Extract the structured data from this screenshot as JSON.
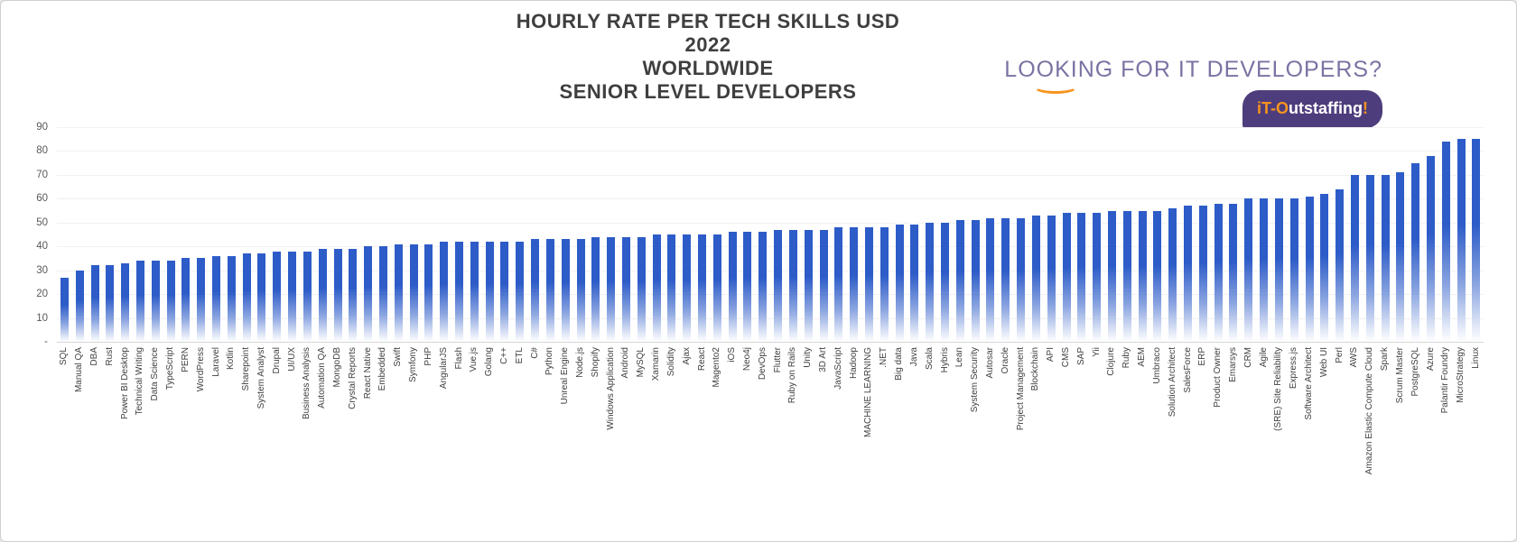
{
  "title": {
    "line1": "HOURLY RATE PER TECH SKILLS USD",
    "line2": "2022",
    "line3": "WORLDWIDE",
    "line4": "SENIOR LEVEL DEVELOPERS"
  },
  "branding": {
    "tagline": "LOOKING FOR IT DEVELOPERS?",
    "logo_prefix": "iT-O",
    "logo_suffix": "utstaffing",
    "logo_exclaim": "!"
  },
  "colors": {
    "bar": "#2d5cc8",
    "tagline": "#7b72a3",
    "badge": "#4e3d7c",
    "accent": "#f7941d",
    "title_text": "#3f3f3f",
    "axis_text": "#595959"
  },
  "chart_data": {
    "type": "bar",
    "title": "HOURLY RATE PER TECH SKILLS USD 2022 WORLDWIDE SENIOR LEVEL DEVELOPERS",
    "xlabel": "",
    "ylabel": "",
    "ylim": [
      0,
      90
    ],
    "ytick_interval": 10,
    "ytick_labels": [
      "-",
      "10",
      "20",
      "30",
      "40",
      "50",
      "60",
      "70",
      "80",
      "90"
    ],
    "grid": true,
    "legend": "none",
    "categories": [
      "SQL",
      "Manual QA",
      "DBA",
      "Rust",
      "Power BI Desktop",
      "Technical Writing",
      "Data Science",
      "TypeScript",
      "PERN",
      "WordPress",
      "Laravel",
      "Kotlin",
      "Sharepoint",
      "System Analyst",
      "Drupal",
      "UI/UX",
      "Business Analysis",
      "Automation QA",
      "MongoDB",
      "Crystal Reports",
      "React Native",
      "Embedded",
      "Swift",
      "Symfony",
      "PHP",
      "AngularJS",
      "Flash",
      "Vue.js",
      "Golang",
      "C++",
      "ETL",
      "C#",
      "Python",
      "Unreal Engine",
      "Node.js",
      "Shopify",
      "Windows Application",
      "Android",
      "MySQL",
      "Xamarin",
      "Solidity",
      "Ajax",
      "React",
      "Magento2",
      "iOS",
      "Neo4j",
      "DevOps",
      "Flutter",
      "Ruby on Rails",
      "Unity",
      "3D Art",
      "JavaScript",
      "Hadoop",
      "MACHINE LEARNING",
      ".NET",
      "Big data",
      "Java",
      "Scala",
      "Hybris",
      "Lean",
      "System Security",
      "Autosar",
      "Oracle",
      "Project Management",
      "Blockchain",
      "API",
      "CMS",
      "SAP",
      "Yii",
      "Clojure",
      "Ruby",
      "AEM",
      "Umbraco",
      "Solution Architect",
      "SalesForce",
      "ERP",
      "Product Owner",
      "Emarsys",
      "CRM",
      "Agile",
      "(SRE) Site Reliability",
      "Express.js",
      "Software Architect",
      "Web UI",
      "Perl",
      "AWS",
      "Amazon Elastic Compute Cloud",
      "Spark",
      "Scrum Master",
      "PostgreSQL",
      "Azure",
      "Palantir Foundry",
      "MicroStrategy",
      "Linux"
    ],
    "values": [
      27,
      30,
      32,
      32,
      33,
      34,
      34,
      34,
      35,
      35,
      36,
      36,
      37,
      37,
      38,
      38,
      38,
      39,
      39,
      39,
      40,
      40,
      41,
      41,
      41,
      42,
      42,
      42,
      42,
      42,
      42,
      43,
      43,
      43,
      43,
      44,
      44,
      44,
      44,
      45,
      45,
      45,
      45,
      45,
      46,
      46,
      46,
      47,
      47,
      47,
      47,
      48,
      48,
      48,
      48,
      49,
      49,
      50,
      50,
      51,
      51,
      52,
      52,
      52,
      53,
      53,
      54,
      54,
      54,
      55,
      55,
      55,
      55,
      56,
      57,
      57,
      58,
      58,
      60,
      60,
      60,
      60,
      61,
      62,
      64,
      70,
      70,
      70,
      71,
      75,
      78,
      84,
      85,
      85
    ]
  }
}
